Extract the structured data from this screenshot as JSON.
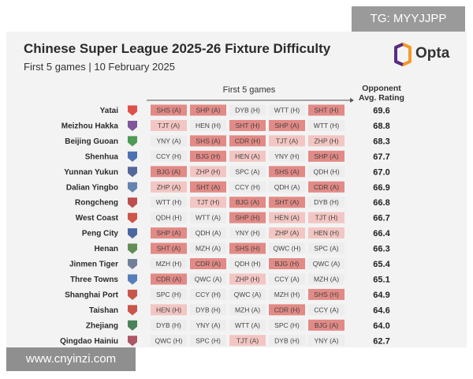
{
  "watermark_top": "TG: MYYJJPP",
  "watermark_bottom": "www.cnyinzi.com",
  "brand": "Opta",
  "colors": {
    "hard": "#e28a86",
    "medium": "#f3c6c3",
    "easy": "#eeeded",
    "logo_orange": "#f39a2b",
    "logo_purple": "#5a2b86"
  },
  "chart_data": {
    "type": "table",
    "title": "Chinese Super League 2025-26 Fixture Difficulty",
    "subtitle": "First 5 games | 10 February 2025",
    "games_header": "First 5 games",
    "rating_header_line1": "Opponent",
    "rating_header_line2": "Avg. Rating",
    "rows": [
      {
        "team": "Yatai",
        "rating": "69.6",
        "fixtures": [
          {
            "text": "SHS (A)",
            "level": "hard"
          },
          {
            "text": "SHP (A)",
            "level": "hard"
          },
          {
            "text": "DYB (H)",
            "level": "easy"
          },
          {
            "text": "WTT (H)",
            "level": "easy"
          },
          {
            "text": "SHT (H)",
            "level": "hard"
          }
        ]
      },
      {
        "team": "Meizhou Hakka",
        "rating": "68.8",
        "fixtures": [
          {
            "text": "TJT (A)",
            "level": "medium"
          },
          {
            "text": "HEN (H)",
            "level": "easy"
          },
          {
            "text": "SHT (H)",
            "level": "hard"
          },
          {
            "text": "SHP (A)",
            "level": "hard"
          },
          {
            "text": "WTT (H)",
            "level": "easy"
          }
        ]
      },
      {
        "team": "Beijing Guoan",
        "rating": "68.3",
        "fixtures": [
          {
            "text": "YNY (A)",
            "level": "easy"
          },
          {
            "text": "SHS (A)",
            "level": "hard"
          },
          {
            "text": "CDR (H)",
            "level": "hard"
          },
          {
            "text": "TJT (A)",
            "level": "medium"
          },
          {
            "text": "ZHP (H)",
            "level": "medium"
          }
        ]
      },
      {
        "team": "Shenhua",
        "rating": "67.7",
        "fixtures": [
          {
            "text": "CCY (H)",
            "level": "easy"
          },
          {
            "text": "BJG (H)",
            "level": "hard"
          },
          {
            "text": "HEN (A)",
            "level": "medium"
          },
          {
            "text": "YNY (H)",
            "level": "easy"
          },
          {
            "text": "SHP (A)",
            "level": "hard"
          }
        ]
      },
      {
        "team": "Yunnan Yukun",
        "rating": "67.0",
        "fixtures": [
          {
            "text": "BJG (A)",
            "level": "hard"
          },
          {
            "text": "ZHP (H)",
            "level": "medium"
          },
          {
            "text": "SPC (A)",
            "level": "easy"
          },
          {
            "text": "SHS (A)",
            "level": "hard"
          },
          {
            "text": "QDH (H)",
            "level": "easy"
          }
        ]
      },
      {
        "team": "Dalian Yingbo",
        "rating": "66.9",
        "fixtures": [
          {
            "text": "ZHP (A)",
            "level": "medium"
          },
          {
            "text": "SHT (A)",
            "level": "hard"
          },
          {
            "text": "CCY (H)",
            "level": "easy"
          },
          {
            "text": "QDH (A)",
            "level": "easy"
          },
          {
            "text": "CDR (A)",
            "level": "hard"
          }
        ]
      },
      {
        "team": "Rongcheng",
        "rating": "66.8",
        "fixtures": [
          {
            "text": "WTT (H)",
            "level": "easy"
          },
          {
            "text": "TJT (H)",
            "level": "medium"
          },
          {
            "text": "BJG (A)",
            "level": "hard"
          },
          {
            "text": "SHT (A)",
            "level": "hard"
          },
          {
            "text": "DYB (H)",
            "level": "easy"
          }
        ]
      },
      {
        "team": "West Coast",
        "rating": "66.7",
        "fixtures": [
          {
            "text": "QDH (H)",
            "level": "easy"
          },
          {
            "text": "WTT (A)",
            "level": "easy"
          },
          {
            "text": "SHP (H)",
            "level": "hard"
          },
          {
            "text": "HEN (A)",
            "level": "medium"
          },
          {
            "text": "TJT (H)",
            "level": "medium"
          }
        ]
      },
      {
        "team": "Peng City",
        "rating": "66.4",
        "fixtures": [
          {
            "text": "SHP (A)",
            "level": "hard"
          },
          {
            "text": "QDH (A)",
            "level": "easy"
          },
          {
            "text": "YNY (H)",
            "level": "easy"
          },
          {
            "text": "ZHP (A)",
            "level": "medium"
          },
          {
            "text": "HEN (H)",
            "level": "medium"
          }
        ]
      },
      {
        "team": "Henan",
        "rating": "66.3",
        "fixtures": [
          {
            "text": "SHT (A)",
            "level": "hard"
          },
          {
            "text": "MZH (A)",
            "level": "easy"
          },
          {
            "text": "SHS (H)",
            "level": "hard"
          },
          {
            "text": "QWC (H)",
            "level": "easy"
          },
          {
            "text": "SPC (A)",
            "level": "easy"
          }
        ]
      },
      {
        "team": "Jinmen Tiger",
        "rating": "65.4",
        "fixtures": [
          {
            "text": "MZH (H)",
            "level": "easy"
          },
          {
            "text": "CDR (A)",
            "level": "hard"
          },
          {
            "text": "QDH (H)",
            "level": "easy"
          },
          {
            "text": "BJG (H)",
            "level": "hard"
          },
          {
            "text": "QWC (A)",
            "level": "easy"
          }
        ]
      },
      {
        "team": "Three Towns",
        "rating": "65.1",
        "fixtures": [
          {
            "text": "CDR (A)",
            "level": "hard"
          },
          {
            "text": "QWC (A)",
            "level": "easy"
          },
          {
            "text": "ZHP (H)",
            "level": "medium"
          },
          {
            "text": "CCY (A)",
            "level": "easy"
          },
          {
            "text": "MZH (A)",
            "level": "easy"
          }
        ]
      },
      {
        "team": "Shanghai Port",
        "rating": "64.9",
        "fixtures": [
          {
            "text": "SPC (H)",
            "level": "easy"
          },
          {
            "text": "CCY (H)",
            "level": "easy"
          },
          {
            "text": "QWC (A)",
            "level": "easy"
          },
          {
            "text": "MZH (H)",
            "level": "easy"
          },
          {
            "text": "SHS (H)",
            "level": "hard"
          }
        ]
      },
      {
        "team": "Taishan",
        "rating": "64.6",
        "fixtures": [
          {
            "text": "HEN (H)",
            "level": "medium"
          },
          {
            "text": "DYB (H)",
            "level": "easy"
          },
          {
            "text": "MZH (A)",
            "level": "easy"
          },
          {
            "text": "CDR (H)",
            "level": "hard"
          },
          {
            "text": "CCY (A)",
            "level": "easy"
          }
        ]
      },
      {
        "team": "Zhejiang",
        "rating": "64.0",
        "fixtures": [
          {
            "text": "DYB (H)",
            "level": "easy"
          },
          {
            "text": "YNY (A)",
            "level": "easy"
          },
          {
            "text": "WTT (A)",
            "level": "easy"
          },
          {
            "text": "SPC (H)",
            "level": "easy"
          },
          {
            "text": "BJG (A)",
            "level": "hard"
          }
        ]
      },
      {
        "team": "Qingdao Hainiu",
        "rating": "62.7",
        "fixtures": [
          {
            "text": "QWC (H)",
            "level": "easy"
          },
          {
            "text": "SPC (H)",
            "level": "easy"
          },
          {
            "text": "TJT (A)",
            "level": "medium"
          },
          {
            "text": "DYB (H)",
            "level": "easy"
          },
          {
            "text": "YNY (A)",
            "level": "easy"
          }
        ]
      }
    ]
  }
}
